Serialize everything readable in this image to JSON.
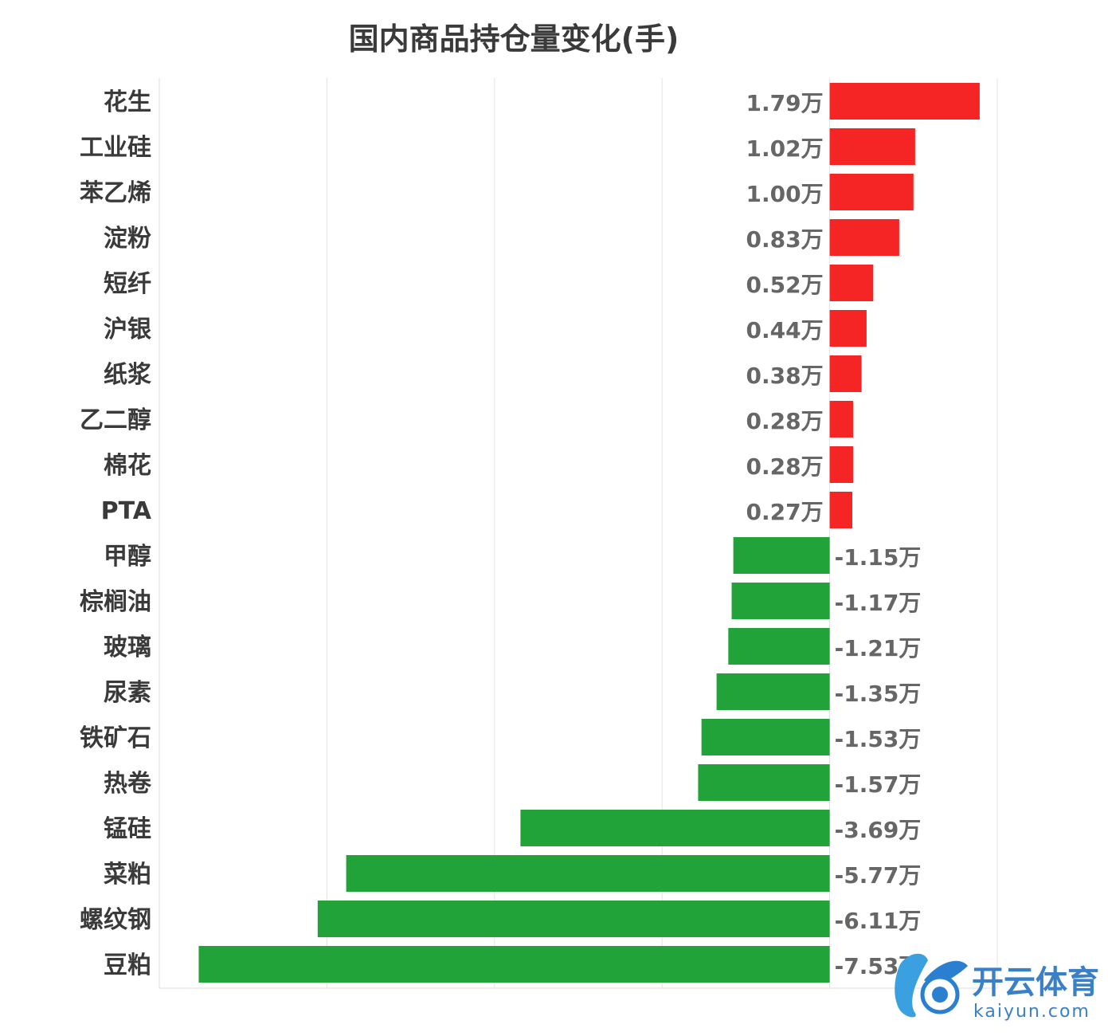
{
  "chart_data": {
    "type": "bar",
    "orientation": "horizontal",
    "title": "国内商品持仓量变化(手)",
    "categories": [
      "花生",
      "工业硅",
      "苯乙烯",
      "淀粉",
      "短纤",
      "沪银",
      "纸浆",
      "乙二醇",
      "棉花",
      "PTA",
      "甲醇",
      "棕榈油",
      "玻璃",
      "尿素",
      "铁矿石",
      "热卷",
      "锰硅",
      "菜粕",
      "螺纹钢",
      "豆粕"
    ],
    "values": [
      1.79,
      1.02,
      1.0,
      0.83,
      0.52,
      0.44,
      0.38,
      0.28,
      0.28,
      0.27,
      -1.15,
      -1.17,
      -1.21,
      -1.35,
      -1.53,
      -1.57,
      -3.69,
      -5.77,
      -6.11,
      -7.53
    ],
    "value_labels": [
      "1.79万",
      "1.02万",
      "1.00万",
      "0.83万",
      "0.52万",
      "0.44万",
      "0.38万",
      "0.28万",
      "0.28万",
      "0.27万",
      "-1.15万",
      "-1.17万",
      "-1.21万",
      "-1.35万",
      "-1.53万",
      "-1.57万",
      "-3.69万",
      "-5.77万",
      "-6.11万",
      "-7.53万"
    ],
    "xlim": [
      -8,
      2
    ],
    "grid": true,
    "colors": {
      "positive": "#f52525",
      "negative": "#22a33a"
    }
  },
  "watermark": {
    "text": "开云体育",
    "sub": "kaiyun.com",
    "color": "#3a80c8"
  }
}
